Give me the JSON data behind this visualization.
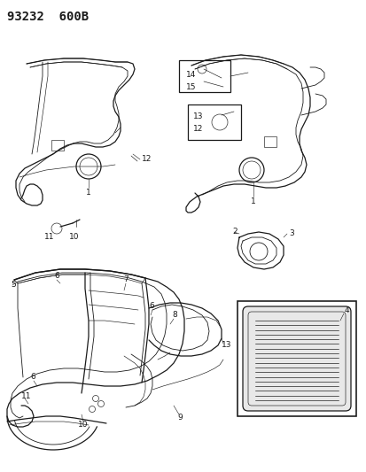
{
  "title": "93232  600B",
  "bg_color": "#ffffff",
  "fig_width": 4.14,
  "fig_height": 5.33,
  "dpi": 100,
  "line_color": "#1a1a1a",
  "lw_main": 0.9,
  "lw_inner": 0.6,
  "lw_detail": 0.45,
  "title_fontsize": 10,
  "label_fontsize": 6.5
}
